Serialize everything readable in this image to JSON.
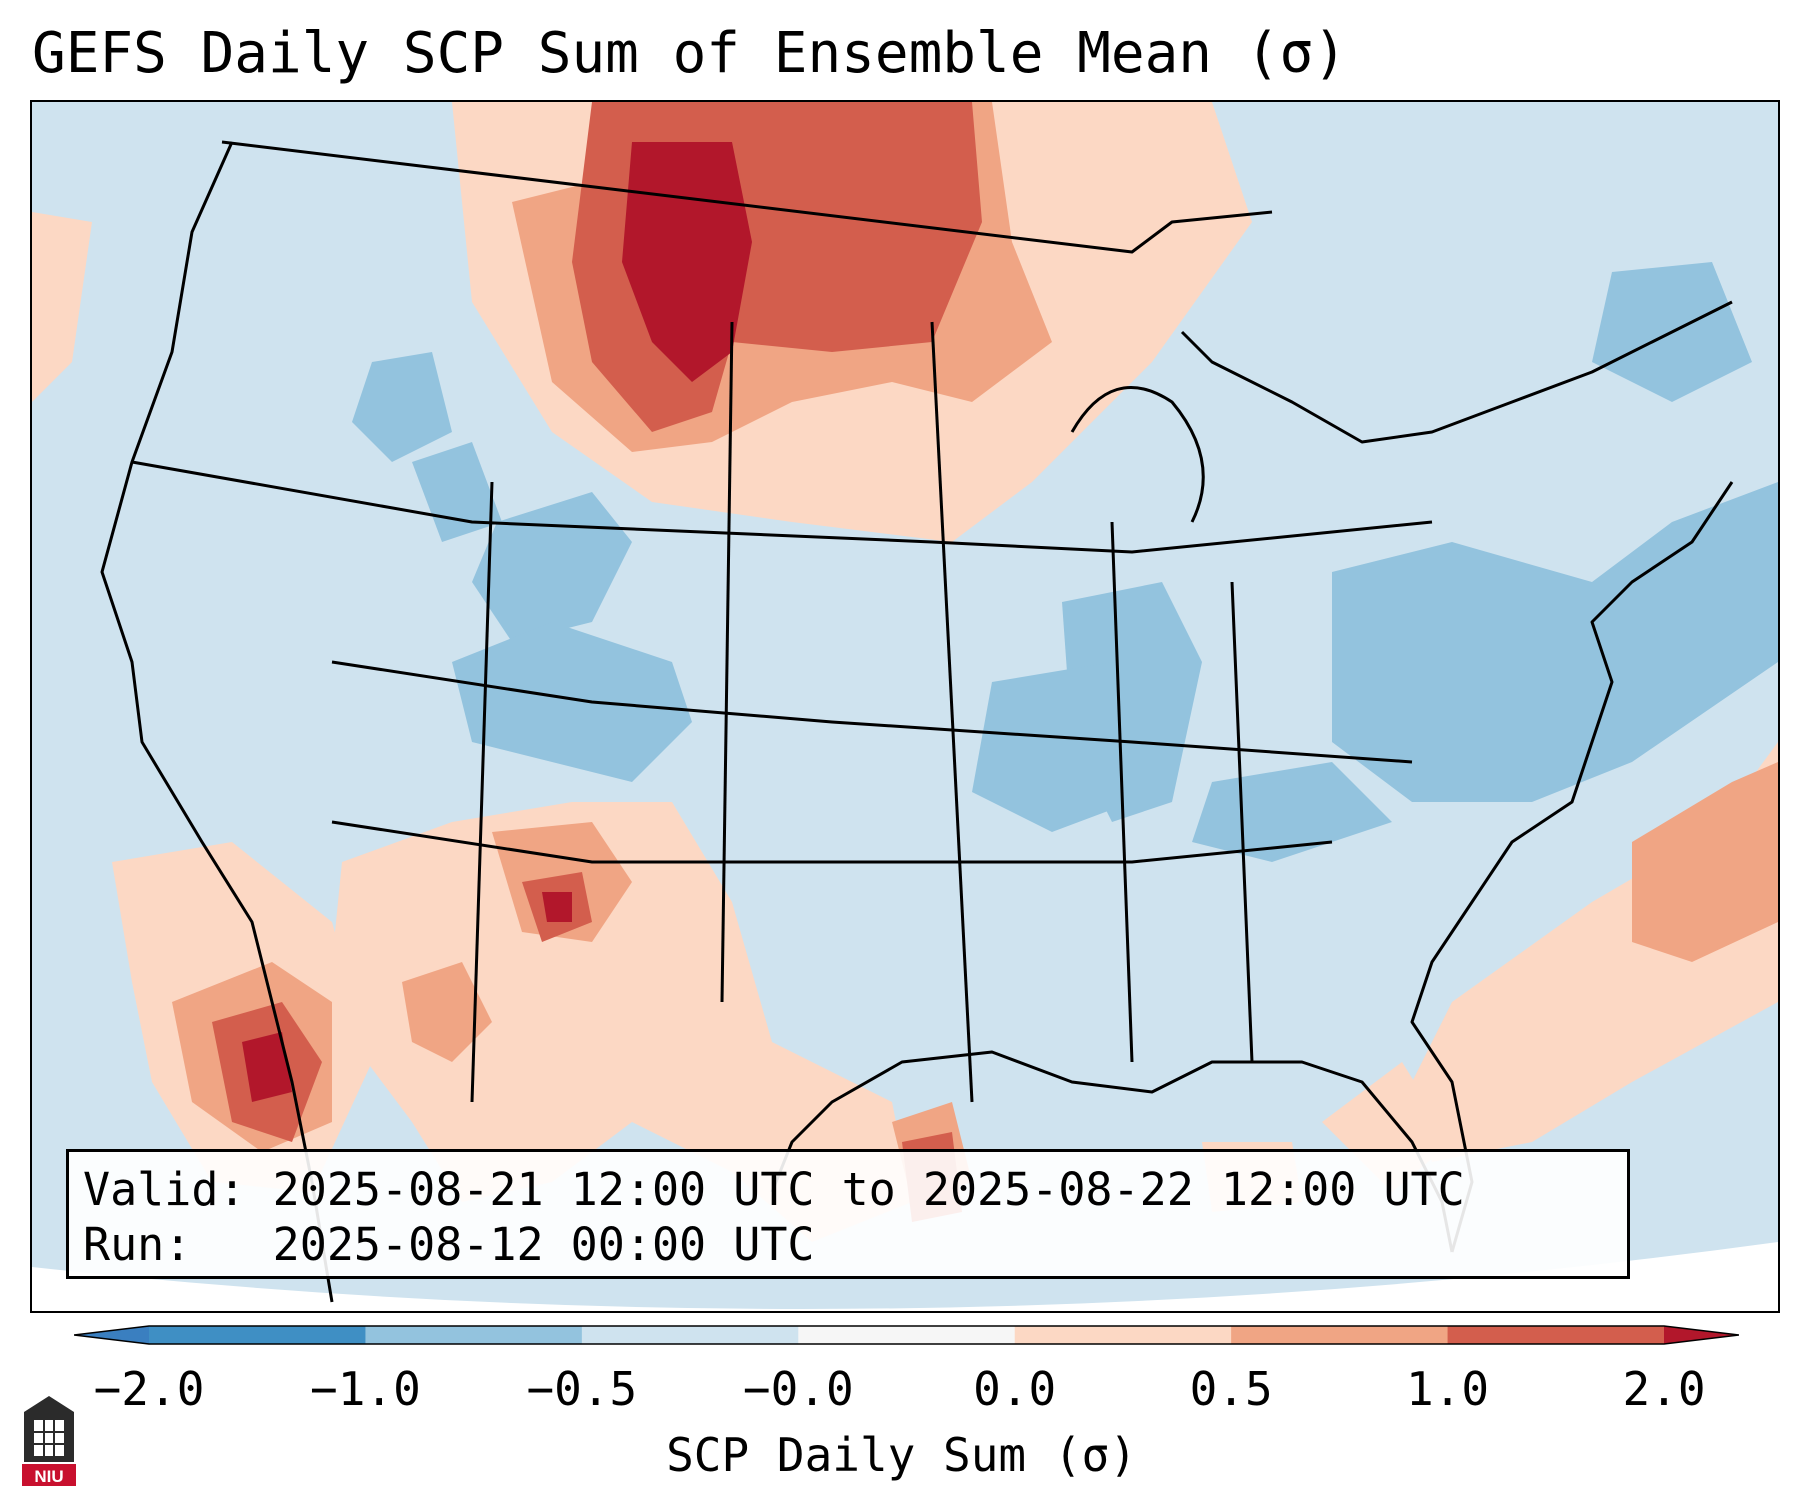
{
  "title": "GEFS Daily SCP Sum of Ensemble Mean (σ)",
  "info": {
    "valid_label": "Valid:",
    "valid_value": "2025-08-21 12:00 UTC to 2025-08-22 12:00 UTC",
    "run_label": "Run:",
    "run_value": "2025-08-12 00:00 UTC"
  },
  "colorbar": {
    "label": "SCP Daily Sum (σ)",
    "ticks": [
      "−2.0",
      "−1.0",
      "−0.5",
      "−0.0",
      "0.0",
      "0.5",
      "1.0",
      "2.0"
    ],
    "bins": [
      {
        "min": -2.0,
        "max": -1.0,
        "color": "#3f8fc4"
      },
      {
        "min": -1.0,
        "max": -0.5,
        "color": "#93c3de"
      },
      {
        "min": -0.5,
        "max": 0.0,
        "color": "#cfe3ef"
      },
      {
        "min": 0.0,
        "max": 0.0,
        "color": "#f6f6f6"
      },
      {
        "min": 0.0,
        "max": 0.5,
        "color": "#fcd8c4"
      },
      {
        "min": 0.5,
        "max": 1.0,
        "color": "#f0a584"
      },
      {
        "min": 1.0,
        "max": 2.0,
        "color": "#d35e4d"
      }
    ],
    "under_color": "#3a7fc0",
    "over_color": "#b2172b"
  },
  "colors": {
    "neg_weak": "#cfe3ef",
    "neg_mid": "#93c3de",
    "pos_weak": "#fcd8c4",
    "pos_mid": "#f0a584",
    "pos_strong": "#d35e4d",
    "pos_max": "#b2172b",
    "border": "#000000"
  },
  "logo": {
    "name": "NIU",
    "text": "NIU"
  }
}
